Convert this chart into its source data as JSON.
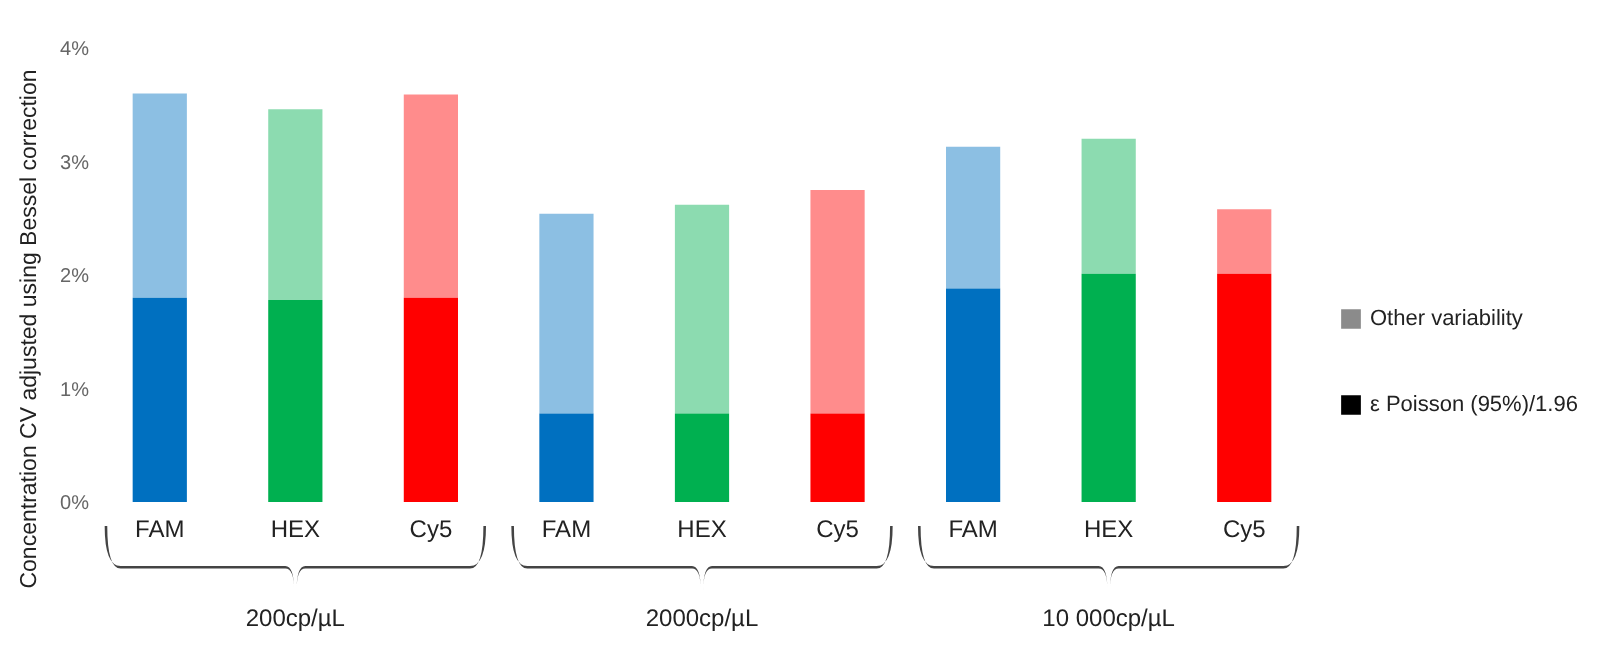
{
  "chart_data": {
    "type": "bar",
    "stacked": true,
    "ylabel": "Concentration CV adjusted using Bessel correction",
    "categories": [
      "FAM",
      "HEX",
      "Cy5",
      "FAM",
      "HEX",
      "Cy5",
      "FAM",
      "HEX",
      "Cy5"
    ],
    "series": [
      {
        "name": "ε Poisson (95%)/1.96",
        "colors": [
          "#0070c0",
          "#00b050",
          "#ff0000",
          "#0070c0",
          "#00b050",
          "#ff0000",
          "#0070c0",
          "#00b050",
          "#ff0000"
        ],
        "values": [
          1.8,
          1.78,
          1.8,
          0.78,
          0.78,
          0.78,
          1.88,
          2.01,
          2.01
        ]
      },
      {
        "name": "Other variability",
        "colors": [
          "#0070c0",
          "#00b050",
          "#ff0000",
          "#0070c0",
          "#00b050",
          "#ff0000",
          "#0070c0",
          "#00b050",
          "#ff0000"
        ],
        "values": [
          1.8,
          1.68,
          1.79,
          1.76,
          1.84,
          1.97,
          1.25,
          1.19,
          0.57
        ]
      }
    ],
    "ylim": [
      0,
      4
    ],
    "yticks": [
      {
        "value": 0,
        "label": "0%"
      },
      {
        "value": 1,
        "label": "1%"
      },
      {
        "value": 2,
        "label": "2%"
      },
      {
        "value": 3,
        "label": "3%"
      },
      {
        "value": 4,
        "label": "4%"
      }
    ],
    "grid": false,
    "legend": "right",
    "annotations": [
      "200cp/µL",
      "2000cp/µL",
      "10 000cp/µL"
    ]
  }
}
